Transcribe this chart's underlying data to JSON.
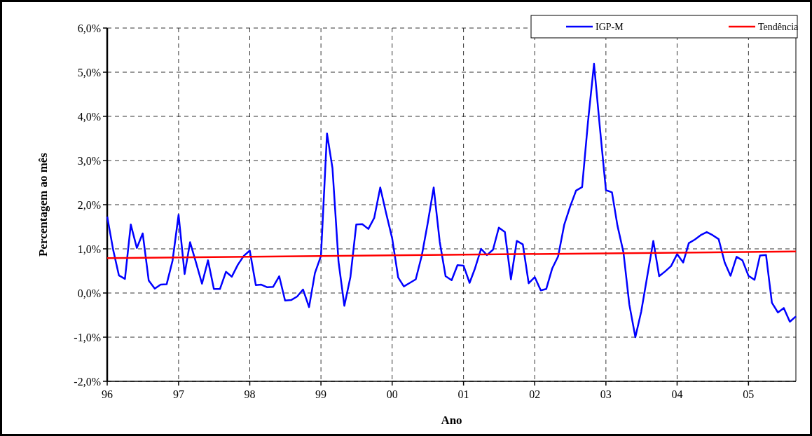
{
  "chart_data": {
    "type": "line",
    "xlabel": "Ano",
    "ylabel": "Percentagem ao mês",
    "xlim": [
      "1996-01",
      "2005-09"
    ],
    "xticks": [
      {
        "value": "1996-01",
        "label": "96"
      },
      {
        "value": "1997-01",
        "label": "97"
      },
      {
        "value": "1998-01",
        "label": "98"
      },
      {
        "value": "1999-01",
        "label": "99"
      },
      {
        "value": "2000-01",
        "label": "00"
      },
      {
        "value": "2001-01",
        "label": "01"
      },
      {
        "value": "2002-01",
        "label": "02"
      },
      {
        "value": "2003-01",
        "label": "03"
      },
      {
        "value": "2004-01",
        "label": "04"
      },
      {
        "value": "2005-01",
        "label": "05"
      }
    ],
    "ylim": [
      -2,
      6
    ],
    "yticks": [
      {
        "value": -2,
        "label": "-2,0%"
      },
      {
        "value": -1,
        "label": "-1,0%"
      },
      {
        "value": 0,
        "label": "0,0%"
      },
      {
        "value": 1,
        "label": "1,0%"
      },
      {
        "value": 2,
        "label": "2,0%"
      },
      {
        "value": 3,
        "label": "3,0%"
      },
      {
        "value": 4,
        "label": "4,0%"
      },
      {
        "value": 5,
        "label": "5,0%"
      },
      {
        "value": 6,
        "label": "6,0%"
      }
    ],
    "grid": true,
    "legend": "top right",
    "marker": "none",
    "line_style": "solid",
    "series": [
      {
        "name": "IGP-M",
        "color": "#0000ff",
        "x": [
          "1996-01",
          "1996-02",
          "1996-03",
          "1996-04",
          "1996-05",
          "1996-06",
          "1996-07",
          "1996-08",
          "1996-09",
          "1996-10",
          "1996-11",
          "1996-12",
          "1997-01",
          "1997-02",
          "1997-03",
          "1997-04",
          "1997-05",
          "1997-06",
          "1997-07",
          "1997-08",
          "1997-09",
          "1997-10",
          "1997-11",
          "1997-12",
          "1998-01",
          "1998-02",
          "1998-03",
          "1998-04",
          "1998-05",
          "1998-06",
          "1998-07",
          "1998-08",
          "1998-09",
          "1998-10",
          "1998-11",
          "1998-12",
          "1999-01",
          "1999-02",
          "1999-03",
          "1999-04",
          "1999-05",
          "1999-06",
          "1999-07",
          "1999-08",
          "1999-09",
          "1999-10",
          "1999-11",
          "1999-12",
          "2000-01",
          "2000-02",
          "2000-03",
          "2000-04",
          "2000-05",
          "2000-06",
          "2000-07",
          "2000-08",
          "2000-09",
          "2000-10",
          "2000-11",
          "2000-12",
          "2001-01",
          "2001-02",
          "2001-03",
          "2001-04",
          "2001-05",
          "2001-06",
          "2001-07",
          "2001-08",
          "2001-09",
          "2001-10",
          "2001-11",
          "2001-12",
          "2002-01",
          "2002-02",
          "2002-03",
          "2002-04",
          "2002-05",
          "2002-06",
          "2002-07",
          "2002-08",
          "2002-09",
          "2002-10",
          "2002-11",
          "2002-12",
          "2003-01",
          "2003-02",
          "2003-03",
          "2003-04",
          "2003-05",
          "2003-06",
          "2003-07",
          "2003-08",
          "2003-09",
          "2003-10",
          "2003-11",
          "2003-12",
          "2004-01",
          "2004-02",
          "2004-03",
          "2004-04",
          "2004-05",
          "2004-06",
          "2004-07",
          "2004-08",
          "2004-09",
          "2004-10",
          "2004-11",
          "2004-12",
          "2005-01",
          "2005-02",
          "2005-03",
          "2005-04",
          "2005-05",
          "2005-06",
          "2005-07",
          "2005-08",
          "2005-09"
        ],
        "values": [
          1.73,
          0.97,
          0.4,
          0.32,
          1.55,
          1.02,
          1.35,
          0.28,
          0.1,
          0.19,
          0.2,
          0.73,
          1.77,
          0.43,
          1.15,
          0.68,
          0.21,
          0.74,
          0.09,
          0.09,
          0.48,
          0.37,
          0.64,
          0.84,
          0.96,
          0.18,
          0.19,
          0.13,
          0.14,
          0.38,
          -0.17,
          -0.16,
          -0.08,
          0.08,
          -0.32,
          0.45,
          0.84,
          3.61,
          2.83,
          0.71,
          -0.29,
          0.36,
          1.55,
          1.56,
          1.45,
          1.7,
          2.39,
          1.81,
          1.24,
          0.35,
          0.15,
          0.23,
          0.31,
          0.85,
          1.57,
          2.39,
          1.16,
          0.38,
          0.29,
          0.63,
          0.62,
          0.23,
          0.56,
          1,
          0.86,
          0.98,
          1.48,
          1.38,
          0.31,
          1.18,
          1.1,
          0.22,
          0.36,
          0.06,
          0.09,
          0.56,
          0.83,
          1.54,
          1.95,
          2.32,
          2.4,
          3.87,
          5.19,
          3.75,
          2.33,
          2.28,
          1.53,
          0.92,
          -0.26,
          -1,
          -0.42,
          0.38,
          1.18,
          0.38,
          0.49,
          0.61,
          0.88,
          0.69,
          1.13,
          1.21,
          1.31,
          1.38,
          1.31,
          1.22,
          0.69,
          0.39,
          0.82,
          0.74,
          0.39,
          0.3,
          0.85,
          0.86,
          -0.22,
          -0.44,
          -0.34,
          -0.65,
          -0.53
        ]
      },
      {
        "name": "Tendência",
        "color": "#ff0000",
        "x": [
          "1996-01",
          "2005-09"
        ],
        "values": [
          0.79,
          0.94
        ]
      }
    ]
  }
}
